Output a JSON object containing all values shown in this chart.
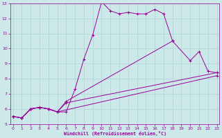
{
  "xlabel": "Windchill (Refroidissement éolien,°C)",
  "bg_color": "#cce8e8",
  "grid_color": "#aadddd",
  "line_color": "#990099",
  "xlim": [
    -0.3,
    23.3
  ],
  "ylim": [
    5,
    13
  ],
  "xticks": [
    0,
    1,
    2,
    3,
    4,
    5,
    6,
    7,
    8,
    9,
    10,
    11,
    12,
    13,
    14,
    15,
    16,
    17,
    18,
    19,
    20,
    21,
    22,
    23
  ],
  "yticks": [
    5,
    6,
    7,
    8,
    9,
    10,
    11,
    12,
    13
  ],
  "line1_x": [
    0,
    1,
    2,
    3,
    4,
    5,
    6,
    7,
    8,
    9,
    10,
    11,
    12,
    13,
    14,
    15,
    16,
    17,
    18
  ],
  "line1_y": [
    5.5,
    5.4,
    6.0,
    6.1,
    6.0,
    5.8,
    5.8,
    7.3,
    9.3,
    10.9,
    13.1,
    12.5,
    12.3,
    12.4,
    12.3,
    12.3,
    12.6,
    12.3,
    10.5
  ],
  "line2_x": [
    0,
    1,
    2,
    3,
    4,
    5,
    6,
    18,
    20,
    21,
    22,
    23
  ],
  "line2_y": [
    5.5,
    5.4,
    6.0,
    6.1,
    6.0,
    5.8,
    6.5,
    10.5,
    9.2,
    9.8,
    8.5,
    8.4
  ],
  "line3_x": [
    0,
    1,
    2,
    3,
    4,
    5,
    6,
    23
  ],
  "line3_y": [
    5.5,
    5.4,
    6.0,
    6.1,
    6.0,
    5.8,
    6.4,
    8.4
  ],
  "line4_x": [
    0,
    1,
    2,
    3,
    4,
    5,
    23
  ],
  "line4_y": [
    5.5,
    5.4,
    6.0,
    6.1,
    6.0,
    5.8,
    8.2
  ]
}
